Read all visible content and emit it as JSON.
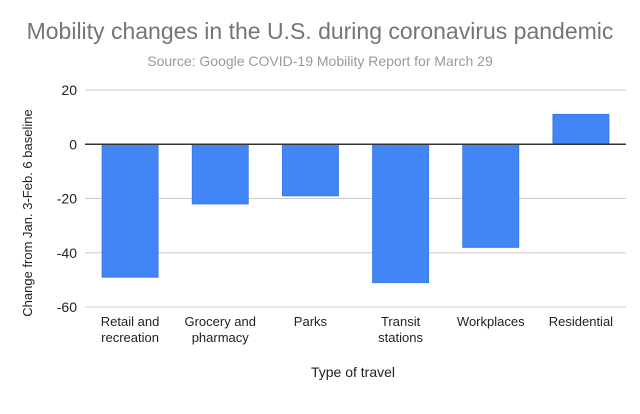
{
  "chart_data": {
    "type": "bar",
    "title": "Mobility changes in the U.S. during coronavirus pandemic",
    "subtitle": "Source: Google COVID-19 Mobility Report for March 29",
    "xlabel": "Type of travel",
    "ylabel": "Change from Jan. 3-Feb. 6 baseline",
    "categories": [
      [
        "Retail and",
        "recreation"
      ],
      [
        "Grocery and",
        "pharmacy"
      ],
      [
        "Parks"
      ],
      [
        "Transit",
        "stations"
      ],
      [
        "Workplaces"
      ],
      [
        "Residential"
      ]
    ],
    "values": [
      -49,
      -22,
      -19,
      -51,
      -38,
      11
    ],
    "ylim": [
      -60,
      20
    ],
    "yticks": [
      20,
      0,
      -20,
      -40,
      -60
    ],
    "grid": true,
    "legend": "none",
    "colors": {
      "bar": "#4285f4",
      "bar_edge": "#3b78e7",
      "grid": "#cccccc",
      "zero_line": "#333333",
      "title": "#757575",
      "subtitle": "#999999",
      "text": "#222222"
    }
  }
}
